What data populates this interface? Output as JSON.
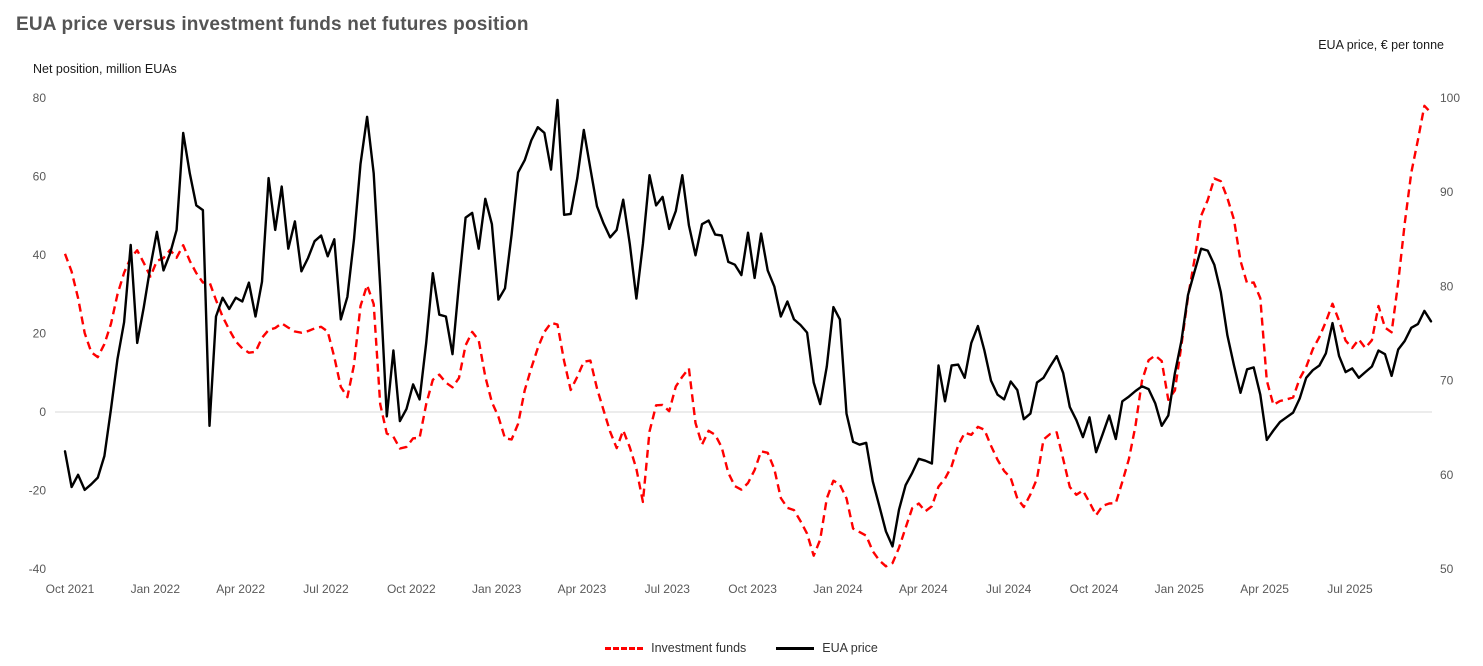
{
  "title": "EUA price versus investment funds net futures position",
  "left_axis": {
    "caption": "Net position, million EUAs"
  },
  "right_axis": {
    "caption": "EUA price, € per tonne"
  },
  "legend": {
    "items": [
      {
        "label": "Investment funds",
        "color": "#ff0000",
        "style": "dashed"
      },
      {
        "label": "EUA price",
        "color": "#000000",
        "style": "solid"
      }
    ]
  },
  "colors": {
    "grid": "#d9d9d9",
    "tick_text": "#595959",
    "investment_funds": "#ff0000",
    "eua_price": "#000000"
  },
  "chart_data": {
    "type": "line",
    "frequency": "weekly",
    "x_range": [
      "Oct 2021",
      "Sep 2025"
    ],
    "x_tick_labels": [
      "Oct 2021",
      "Jan 2022",
      "Apr 2022",
      "Jul 2022",
      "Oct 2022",
      "Jan 2023",
      "Apr 2023",
      "Jul 2023",
      "Oct 2023",
      "Jan 2024",
      "Apr 2024",
      "Jul 2024",
      "Oct 2024",
      "Jan 2025",
      "Apr 2025",
      "Jul 2025"
    ],
    "left_axis": {
      "label": "Net position, million EUAs",
      "ticks": [
        80,
        60,
        40,
        20,
        0,
        -20,
        -40
      ],
      "range": [
        -40,
        80
      ]
    },
    "right_axis": {
      "label": "EUA price, € per tonne",
      "ticks": [
        100,
        90,
        80,
        70,
        60,
        50
      ],
      "range": [
        50,
        100
      ]
    },
    "gridlines": "zero-line-only",
    "legend_position": "bottom-center",
    "series": [
      {
        "name": "Investment funds",
        "axis": "left",
        "color": "#ff0000",
        "style": "dashed",
        "values": [
          40.3,
          35.8,
          29,
          20.1,
          15.2,
          14,
          17.3,
          22.5,
          30,
          35.5,
          39.3,
          41.2,
          38,
          34.5,
          38.5,
          39.2,
          41.3,
          39.3,
          42.5,
          38.5,
          35.4,
          33,
          33.1,
          28.5,
          24.3,
          21,
          18,
          16.2,
          15.1,
          15.3,
          18.9,
          20.9,
          21.4,
          22.6,
          21.5,
          20.5,
          20.2,
          20.6,
          21.3,
          21.7,
          20.5,
          14,
          6.4,
          3.8,
          12,
          27,
          32.3,
          27.5,
          2,
          -5.5,
          -6.3,
          -9.3,
          -8.9,
          -6.7,
          -6.6,
          2,
          8.2,
          9.5,
          7.5,
          6.3,
          8.7,
          17,
          20.4,
          18.3,
          9,
          2.5,
          -1.2,
          -6.7,
          -7,
          -3,
          5.5,
          11.2,
          16.3,
          20.4,
          22.7,
          22.3,
          13,
          5.6,
          9,
          12.8,
          13.1,
          6,
          0.5,
          -5,
          -9.2,
          -4.7,
          -9,
          -14.5,
          -22.9,
          -5,
          1.7,
          1.8,
          0.2,
          6.5,
          9,
          11.1,
          -2.8,
          -8.3,
          -4.8,
          -5.8,
          -9,
          -15.5,
          -18.9,
          -19.8,
          -18.1,
          -14.8,
          -10,
          -10.4,
          -14.5,
          -21.9,
          -24.4,
          -25,
          -27.8,
          -31,
          -36.6,
          -32.5,
          -22,
          -17.5,
          -18.5,
          -22,
          -29.7,
          -30.6,
          -31.5,
          -35.5,
          -37.8,
          -39.3,
          -38.5,
          -34.6,
          -29.5,
          -24.5,
          -23.3,
          -25.3,
          -24,
          -19,
          -17,
          -13.8,
          -8.5,
          -5.3,
          -5.8,
          -3.8,
          -4.5,
          -8.6,
          -12.2,
          -15,
          -16.8,
          -22,
          -24.2,
          -21,
          -17,
          -7,
          -5.6,
          -5.2,
          -12,
          -19.1,
          -21.1,
          -20,
          -23,
          -26.3,
          -23.9,
          -23.3,
          -23.2,
          -17.8,
          -12,
          -3.5,
          8,
          13.2,
          14.4,
          13,
          3.1,
          5.5,
          17,
          29.3,
          39,
          50,
          54,
          59.5,
          58.8,
          54.5,
          49,
          38.5,
          32.8,
          33,
          29,
          8,
          1.8,
          2.8,
          3.2,
          3.7,
          8.5,
          11.5,
          16,
          19.1,
          23,
          27.6,
          23.2,
          18.2,
          16.3,
          18.5,
          16.3,
          18.3,
          27,
          21.5,
          20.3,
          33,
          48,
          61,
          69.3,
          78,
          76.2
        ]
      },
      {
        "name": "EUA price",
        "axis": "right",
        "color": "#000000",
        "style": "solid",
        "values": [
          62.5,
          58.7,
          60,
          58.4,
          59,
          59.7,
          62,
          67,
          72.3,
          76.2,
          84.4,
          74,
          77.8,
          82.1,
          85.8,
          81.7,
          83.5,
          86,
          96.3,
          92,
          88.6,
          88.1,
          65.2,
          76.8,
          78.8,
          77.6,
          78.8,
          78.4,
          80.4,
          76.8,
          80.5,
          91.5,
          86,
          90.6,
          84,
          86.9,
          81.6,
          83,
          84.8,
          85.4,
          83.2,
          85,
          76.5,
          78.9,
          85,
          93,
          98,
          92,
          80,
          66.2,
          73.2,
          65.7,
          67,
          69.6,
          68,
          74,
          81.4,
          77,
          76.8,
          72.8,
          80.3,
          87.3,
          87.8,
          84,
          89.3,
          86.6,
          78.6,
          79.8,
          85.5,
          92.1,
          93.4,
          95.5,
          96.9,
          96.3,
          92.4,
          99.8,
          87.6,
          87.7,
          91.5,
          96.6,
          92.5,
          88.5,
          86.7,
          85.2,
          86,
          89.2,
          84.5,
          78.7,
          84.5,
          91.8,
          88.6,
          89.5,
          86.1,
          88,
          91.8,
          86.5,
          83.3,
          86.6,
          87,
          85.5,
          85.4,
          82.6,
          82.3,
          81.2,
          85.7,
          80.9,
          85.6,
          81.7,
          80,
          76.8,
          78.4,
          76.5,
          75.9,
          75.1,
          69.8,
          67.5,
          71.5,
          77.8,
          76.5,
          66.5,
          63.5,
          63.2,
          63.4,
          59.3,
          56.7,
          54,
          52.4,
          56.3,
          58.9,
          60.2,
          61.7,
          61.5,
          61.2,
          71.6,
          67.8,
          71.6,
          71.7,
          70.3,
          74,
          75.8,
          73.2,
          70,
          68.5,
          68,
          69.9,
          69,
          65.9,
          66.5,
          69.8,
          70.3,
          71.5,
          72.6,
          70.8,
          67.2,
          65.8,
          64,
          66.1,
          62.4,
          64.3,
          66.3,
          63.8,
          67.8,
          68.3,
          68.9,
          69.4,
          69.1,
          67.6,
          65.2,
          66.3,
          70.8,
          74.2,
          79.1,
          81.6,
          84,
          83.8,
          82.3,
          79.4,
          74.8,
          71.6,
          68.7,
          71.2,
          71.4,
          68.5,
          63.7,
          64.7,
          65.6,
          66.1,
          66.6,
          68.1,
          70.3,
          71.1,
          71.6,
          72.9,
          76.1,
          72.6,
          70.9,
          71.3,
          70.3,
          70.9,
          71.5,
          73.2,
          72.8,
          70.5,
          73.3,
          74.2,
          75.6,
          76,
          77.4,
          76.3
        ]
      }
    ]
  }
}
